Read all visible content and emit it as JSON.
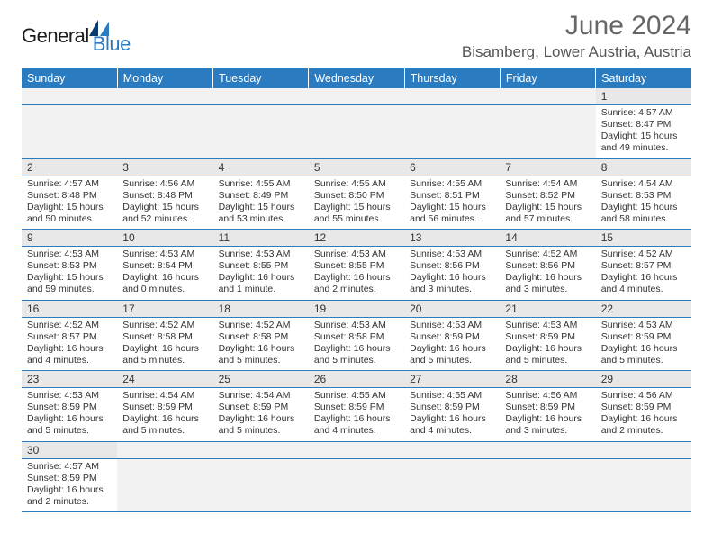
{
  "logo": {
    "text1": "General",
    "text2": "Blue"
  },
  "title": "June 2024",
  "location": "Bisamberg, Lower Austria, Austria",
  "colors": {
    "header_bg": "#2b7bc0",
    "row_sep": "#2b7bc0",
    "daynum_bg": "#e8e8e8"
  },
  "headers": [
    "Sunday",
    "Monday",
    "Tuesday",
    "Wednesday",
    "Thursday",
    "Friday",
    "Saturday"
  ],
  "weeks": [
    [
      null,
      null,
      null,
      null,
      null,
      null,
      {
        "d": "1",
        "sr": "4:57 AM",
        "ss": "8:47 PM",
        "dl": "15 hours and 49 minutes."
      }
    ],
    [
      {
        "d": "2",
        "sr": "4:57 AM",
        "ss": "8:48 PM",
        "dl": "15 hours and 50 minutes."
      },
      {
        "d": "3",
        "sr": "4:56 AM",
        "ss": "8:48 PM",
        "dl": "15 hours and 52 minutes."
      },
      {
        "d": "4",
        "sr": "4:55 AM",
        "ss": "8:49 PM",
        "dl": "15 hours and 53 minutes."
      },
      {
        "d": "5",
        "sr": "4:55 AM",
        "ss": "8:50 PM",
        "dl": "15 hours and 55 minutes."
      },
      {
        "d": "6",
        "sr": "4:55 AM",
        "ss": "8:51 PM",
        "dl": "15 hours and 56 minutes."
      },
      {
        "d": "7",
        "sr": "4:54 AM",
        "ss": "8:52 PM",
        "dl": "15 hours and 57 minutes."
      },
      {
        "d": "8",
        "sr": "4:54 AM",
        "ss": "8:53 PM",
        "dl": "15 hours and 58 minutes."
      }
    ],
    [
      {
        "d": "9",
        "sr": "4:53 AM",
        "ss": "8:53 PM",
        "dl": "15 hours and 59 minutes."
      },
      {
        "d": "10",
        "sr": "4:53 AM",
        "ss": "8:54 PM",
        "dl": "16 hours and 0 minutes."
      },
      {
        "d": "11",
        "sr": "4:53 AM",
        "ss": "8:55 PM",
        "dl": "16 hours and 1 minute."
      },
      {
        "d": "12",
        "sr": "4:53 AM",
        "ss": "8:55 PM",
        "dl": "16 hours and 2 minutes."
      },
      {
        "d": "13",
        "sr": "4:53 AM",
        "ss": "8:56 PM",
        "dl": "16 hours and 3 minutes."
      },
      {
        "d": "14",
        "sr": "4:52 AM",
        "ss": "8:56 PM",
        "dl": "16 hours and 3 minutes."
      },
      {
        "d": "15",
        "sr": "4:52 AM",
        "ss": "8:57 PM",
        "dl": "16 hours and 4 minutes."
      }
    ],
    [
      {
        "d": "16",
        "sr": "4:52 AM",
        "ss": "8:57 PM",
        "dl": "16 hours and 4 minutes."
      },
      {
        "d": "17",
        "sr": "4:52 AM",
        "ss": "8:58 PM",
        "dl": "16 hours and 5 minutes."
      },
      {
        "d": "18",
        "sr": "4:52 AM",
        "ss": "8:58 PM",
        "dl": "16 hours and 5 minutes."
      },
      {
        "d": "19",
        "sr": "4:53 AM",
        "ss": "8:58 PM",
        "dl": "16 hours and 5 minutes."
      },
      {
        "d": "20",
        "sr": "4:53 AM",
        "ss": "8:59 PM",
        "dl": "16 hours and 5 minutes."
      },
      {
        "d": "21",
        "sr": "4:53 AM",
        "ss": "8:59 PM",
        "dl": "16 hours and 5 minutes."
      },
      {
        "d": "22",
        "sr": "4:53 AM",
        "ss": "8:59 PM",
        "dl": "16 hours and 5 minutes."
      }
    ],
    [
      {
        "d": "23",
        "sr": "4:53 AM",
        "ss": "8:59 PM",
        "dl": "16 hours and 5 minutes."
      },
      {
        "d": "24",
        "sr": "4:54 AM",
        "ss": "8:59 PM",
        "dl": "16 hours and 5 minutes."
      },
      {
        "d": "25",
        "sr": "4:54 AM",
        "ss": "8:59 PM",
        "dl": "16 hours and 5 minutes."
      },
      {
        "d": "26",
        "sr": "4:55 AM",
        "ss": "8:59 PM",
        "dl": "16 hours and 4 minutes."
      },
      {
        "d": "27",
        "sr": "4:55 AM",
        "ss": "8:59 PM",
        "dl": "16 hours and 4 minutes."
      },
      {
        "d": "28",
        "sr": "4:56 AM",
        "ss": "8:59 PM",
        "dl": "16 hours and 3 minutes."
      },
      {
        "d": "29",
        "sr": "4:56 AM",
        "ss": "8:59 PM",
        "dl": "16 hours and 2 minutes."
      }
    ],
    [
      {
        "d": "30",
        "sr": "4:57 AM",
        "ss": "8:59 PM",
        "dl": "16 hours and 2 minutes."
      },
      null,
      null,
      null,
      null,
      null,
      null
    ]
  ],
  "labels": {
    "sunrise": "Sunrise:",
    "sunset": "Sunset:",
    "daylight": "Daylight:"
  }
}
